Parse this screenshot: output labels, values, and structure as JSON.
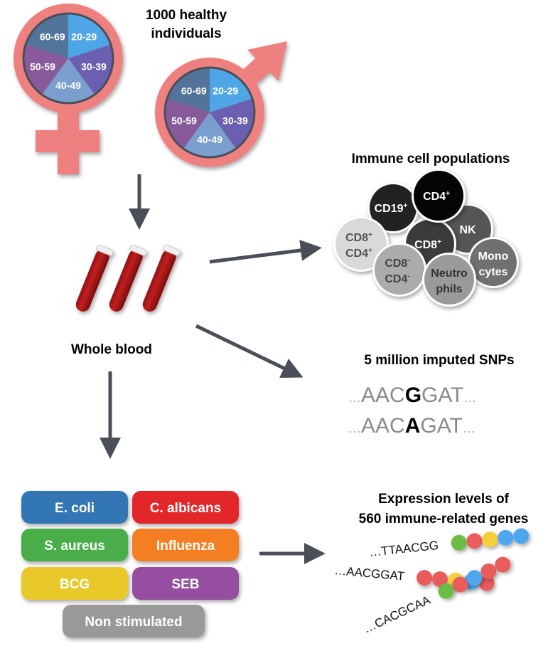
{
  "title": {
    "line1": "1000 healthy",
    "line2": "individuals"
  },
  "age_groups": [
    "20-29",
    "30-39",
    "40-49",
    "50-59",
    "60-69"
  ],
  "age_colors": [
    "#4fa6e6",
    "#6a5fb0",
    "#7a9fce",
    "#875a9c",
    "#52739a"
  ],
  "symbol_color": "#ee8080",
  "whole_blood": "Whole blood",
  "immune_cells": {
    "title": "Immune cell populations",
    "cells": [
      {
        "label1": "CD19",
        "sup1": "+",
        "color": "#222222",
        "text": "#ffffff"
      },
      {
        "label1": "CD4",
        "sup1": "+",
        "color": "#050505",
        "text": "#ffffff"
      },
      {
        "label1": "NK",
        "color": "#555555",
        "text": "#ffffff"
      },
      {
        "label1": "CD8",
        "sup1": "+",
        "color": "#3b3b3b",
        "text": "#ffffff"
      },
      {
        "label1": "CD8",
        "sup1": "+",
        "label2": "CD4",
        "sup2": "+",
        "color": "#d9d9d9",
        "text": "#555555"
      },
      {
        "label1": "CD8",
        "sup1": "-",
        "label2": "CD4",
        "sup2": "-",
        "color": "#ababab",
        "text": "#444444"
      },
      {
        "label1": "Neutro",
        "label2": "phils",
        "color": "#9a9a9a",
        "text": "#333333"
      },
      {
        "label1": "Mono",
        "label2": "cytes",
        "color": "#707070",
        "text": "#ffffff"
      }
    ]
  },
  "snps": {
    "title": "5 million imputed SNPs",
    "seq1": {
      "pre": "AAC",
      "allele": "G",
      "post": "GAT"
    },
    "seq2": {
      "pre": "AAC",
      "allele": "A",
      "post": "GAT"
    },
    "ellipsis": "…"
  },
  "stimuli": [
    {
      "label": "E. coli",
      "color": "#3277b3"
    },
    {
      "label": "C. albicans",
      "color": "#e3262b"
    },
    {
      "label": "S. aureus",
      "color": "#4aae48"
    },
    {
      "label": "Influenza",
      "color": "#f47f20"
    },
    {
      "label": "BCG",
      "color": "#e9c82a"
    },
    {
      "label": "SEB",
      "color": "#9650a0"
    },
    {
      "label": "Non stimulated",
      "color": "#999999"
    }
  ],
  "expression": {
    "title1": "Expression levels of",
    "title2": "560 immune-related genes",
    "genes": [
      {
        "seq": "…TTAACGG",
        "beads": [
          "#6cbb45",
          "#e85c5c",
          "#f2cf3a",
          "#4fa6f0",
          "#4fa6f0"
        ]
      },
      {
        "seq": "…AACGGAT",
        "beads": [
          "#e85c5c",
          "#e85c5c",
          "#f2cf3a",
          "#4fa6f0",
          "#e85c5c"
        ]
      },
      {
        "seq": "…CACGCAA",
        "beads": [
          "#6cbb45",
          "#e85c5c",
          "#4fa6f0",
          "#e85c5c",
          "#e85c5c"
        ]
      }
    ]
  },
  "arrow_color": "#4a4f57"
}
